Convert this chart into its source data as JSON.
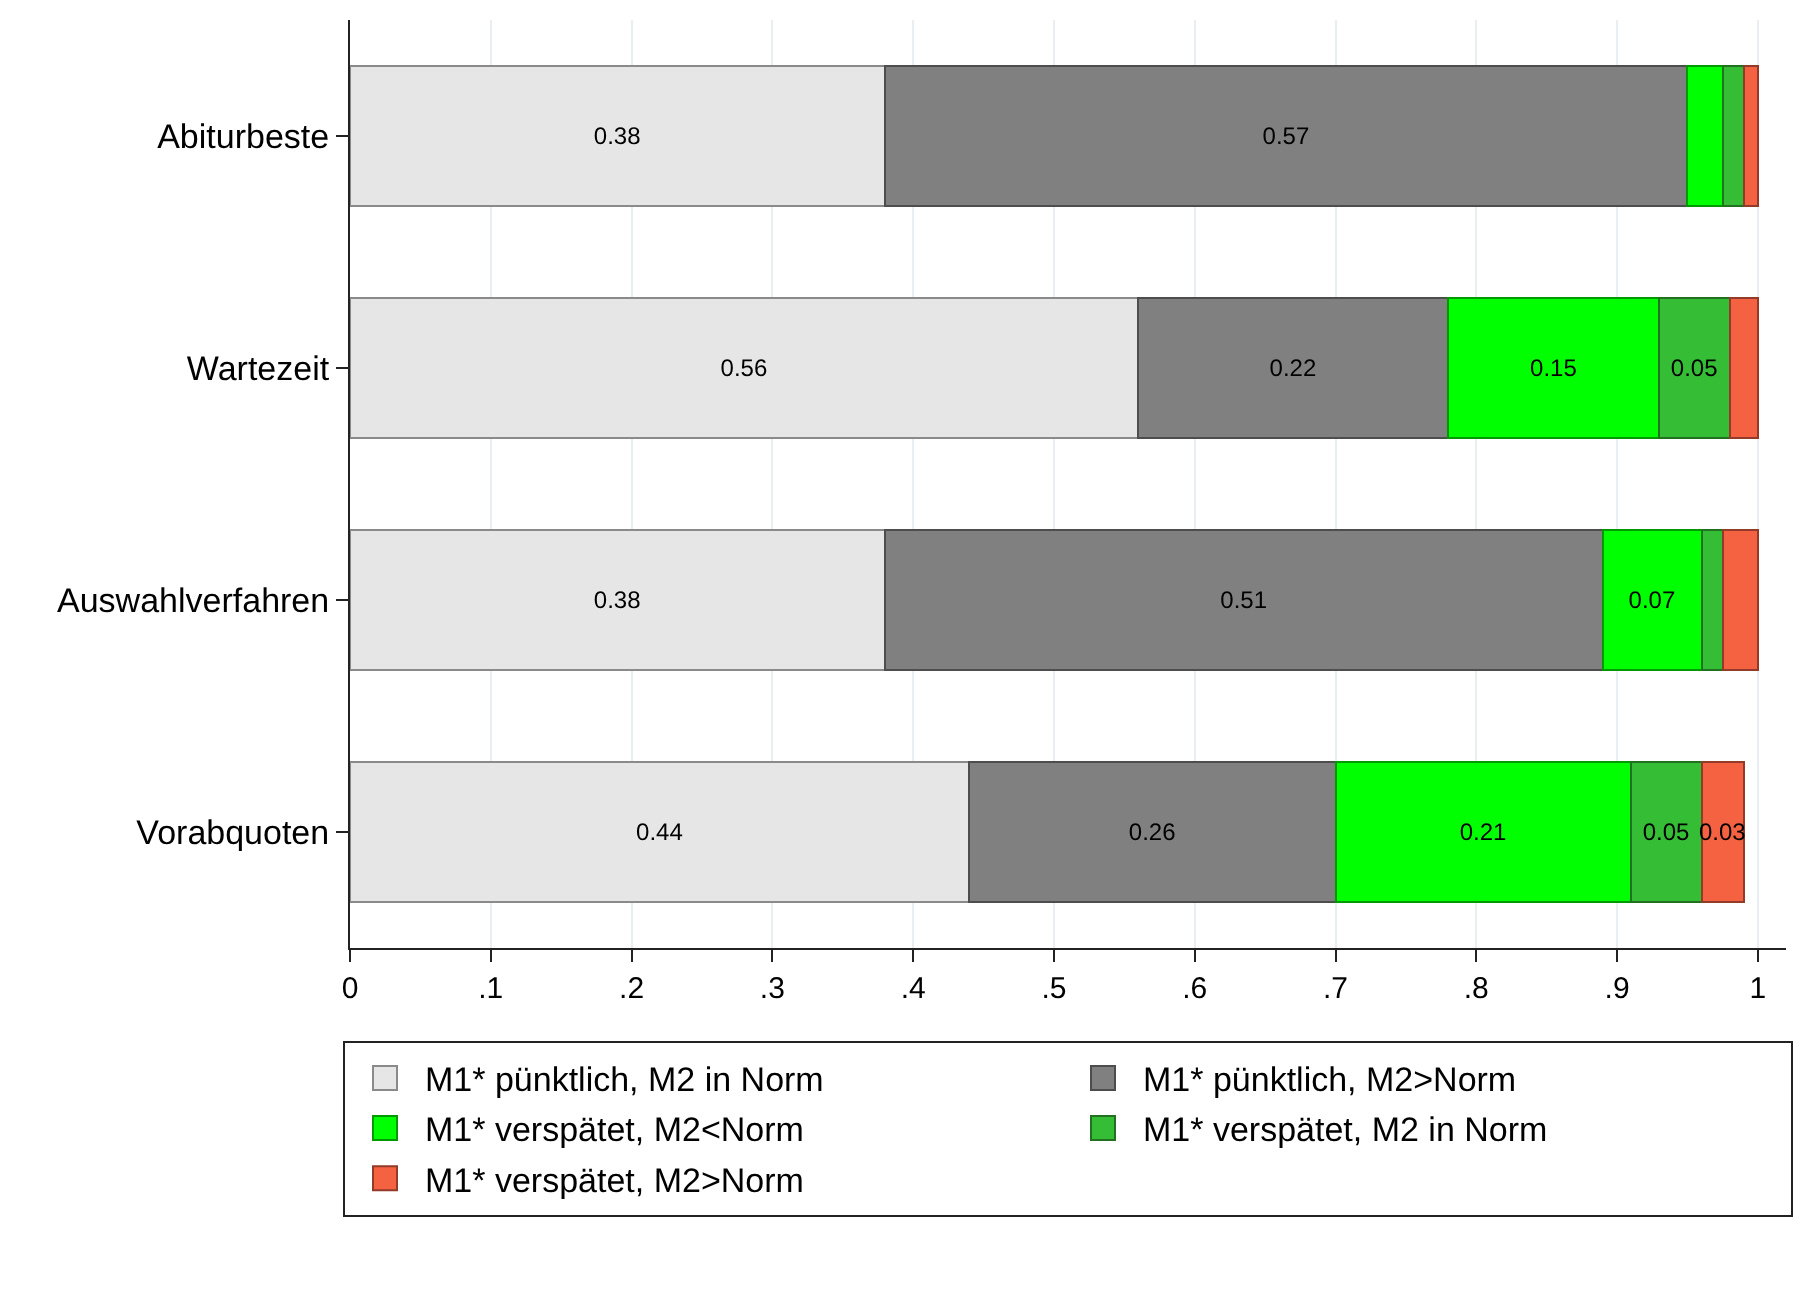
{
  "chart_data": {
    "type": "bar",
    "orientation": "horizontal",
    "stacked": true,
    "categories": [
      "Abiturbeste",
      "Wartezeit",
      "Auswahlverfahren",
      "Vorabquoten"
    ],
    "series": [
      {
        "name": "M1* pünktlich, M2 in Norm",
        "color": "#e6e6e6",
        "values": [
          0.38,
          0.56,
          0.38,
          0.44
        ],
        "value_labels": [
          "0.38",
          "0.56",
          "0.38",
          "0.44"
        ]
      },
      {
        "name": "M1* pünktlich, M2>Norm",
        "color": "#808080",
        "values": [
          0.57,
          0.22,
          0.51,
          0.26
        ],
        "value_labels": [
          "0.57",
          "0.22",
          "0.51",
          "0.26"
        ]
      },
      {
        "name": "M1* verspätet, M2<Norm",
        "color": "#00ff00",
        "values": [
          0.025,
          0.15,
          0.07,
          0.21
        ],
        "value_labels": [
          null,
          "0.15",
          "0.07",
          "0.21"
        ]
      },
      {
        "name": "M1* verspätet, M2 in Norm",
        "color": "#35bd35",
        "values": [
          0.015,
          0.05,
          0.015,
          0.05
        ],
        "value_labels": [
          null,
          "0.05",
          null,
          "0.05"
        ]
      },
      {
        "name": "M1* verspätet, M2>Norm",
        "color": "#f46242",
        "values": [
          0.01,
          0.02,
          0.025,
          0.03
        ],
        "value_labels": [
          null,
          null,
          null,
          "0.03"
        ]
      }
    ],
    "xlim": [
      0,
      1.02
    ],
    "xticks": [
      0,
      {
        "value": 0.1,
        "label": ".1"
      },
      {
        "value": 0.2,
        "label": ".2"
      },
      {
        "value": 0.3,
        "label": ".3"
      },
      {
        "value": 0.4,
        "label": ".4"
      },
      {
        "value": 0.5,
        "label": ".5"
      },
      {
        "value": 0.6,
        "label": ".6"
      },
      {
        "value": 0.7,
        "label": ".7"
      },
      {
        "value": 0.8,
        "label": ".8"
      },
      {
        "value": 0.9,
        "label": ".9"
      },
      1
    ],
    "grid": "x",
    "legend": "bottom"
  }
}
